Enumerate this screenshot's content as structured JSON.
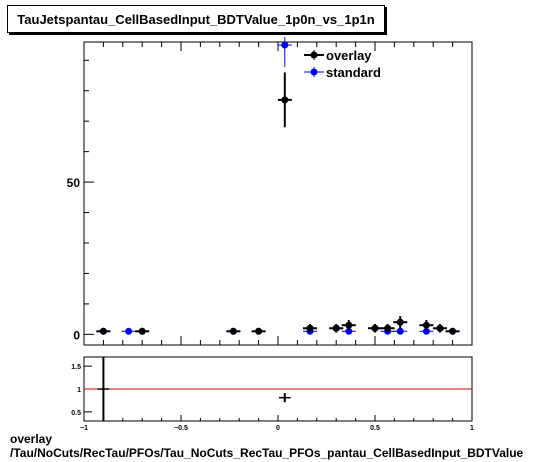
{
  "title": "TauJetspantau_CellBasedInput_BDTValue_1p0n_vs_1p1n",
  "footer": {
    "line1": "overlay",
    "line2": "/Tau/NoCuts/RecTau/PFOs/Tau_NoCuts_RecTau_PFOs_pantau_CellBasedInput_BDTValue"
  },
  "colors": {
    "overlay": "#000000",
    "standard": "#0000ff",
    "ratio_line": "#cc0000"
  },
  "chart_data": [
    {
      "type": "scatter",
      "xlim": [
        -1,
        1
      ],
      "ylim": [
        -3.5,
        96
      ],
      "yticks": [
        0,
        50
      ],
      "ytick_labels": [
        "0",
        "50"
      ],
      "legend_placement": "top-center",
      "series": [
        {
          "name": "overlay",
          "color": "#000000",
          "points": [
            {
              "x": -0.9,
              "y": 1,
              "err": 1
            },
            {
              "x": -0.7,
              "y": 1,
              "err": 1
            },
            {
              "x": -0.23,
              "y": 1,
              "err": 1
            },
            {
              "x": -0.1,
              "y": 1,
              "err": 1
            },
            {
              "x": 0.035,
              "y": 77,
              "err": 9
            },
            {
              "x": 0.165,
              "y": 2,
              "err": 1.4
            },
            {
              "x": 0.3,
              "y": 2,
              "err": 1.4
            },
            {
              "x": 0.365,
              "y": 3,
              "err": 1.7
            },
            {
              "x": 0.5,
              "y": 2,
              "err": 1.4
            },
            {
              "x": 0.565,
              "y": 2,
              "err": 1.4
            },
            {
              "x": 0.63,
              "y": 4,
              "err": 2
            },
            {
              "x": 0.765,
              "y": 3,
              "err": 1.7
            },
            {
              "x": 0.835,
              "y": 2,
              "err": 1.4
            },
            {
              "x": 0.9,
              "y": 1,
              "err": 1
            }
          ]
        },
        {
          "name": "standard",
          "color": "#0000ff",
          "points": [
            {
              "x": -0.9,
              "y": 1
            },
            {
              "x": -0.77,
              "y": 1
            },
            {
              "x": -0.7,
              "y": 1
            },
            {
              "x": -0.23,
              "y": 1
            },
            {
              "x": -0.1,
              "y": 1
            },
            {
              "x": 0.035,
              "y": 95
            },
            {
              "x": 0.165,
              "y": 1
            },
            {
              "x": 0.3,
              "y": 2
            },
            {
              "x": 0.365,
              "y": 1
            },
            {
              "x": 0.5,
              "y": 2
            },
            {
              "x": 0.565,
              "y": 1
            },
            {
              "x": 0.63,
              "y": 1
            },
            {
              "x": 0.765,
              "y": 1
            },
            {
              "x": 0.835,
              "y": 2
            },
            {
              "x": 0.9,
              "y": 1
            }
          ]
        }
      ]
    },
    {
      "type": "scatter",
      "xlim": [
        -1,
        1
      ],
      "ylim": [
        0.3,
        1.7
      ],
      "xticks": [
        -1,
        -0.5,
        0,
        0.5,
        1
      ],
      "xtick_labels": [
        "−1",
        "−0.5",
        "0",
        "0.5",
        "1"
      ],
      "yticks": [
        0.5,
        1,
        1.5
      ],
      "ytick_labels": [
        "0.5",
        "1",
        "1.5"
      ],
      "reference_line": 1,
      "series": [
        {
          "color": "#000000",
          "points": [
            {
              "x": -0.9,
              "y": 1,
              "xerr": 0.03,
              "err": 1
            },
            {
              "x": 0.035,
              "y": 0.81,
              "xerr": 0.03,
              "err": 0.1
            }
          ]
        }
      ]
    }
  ]
}
